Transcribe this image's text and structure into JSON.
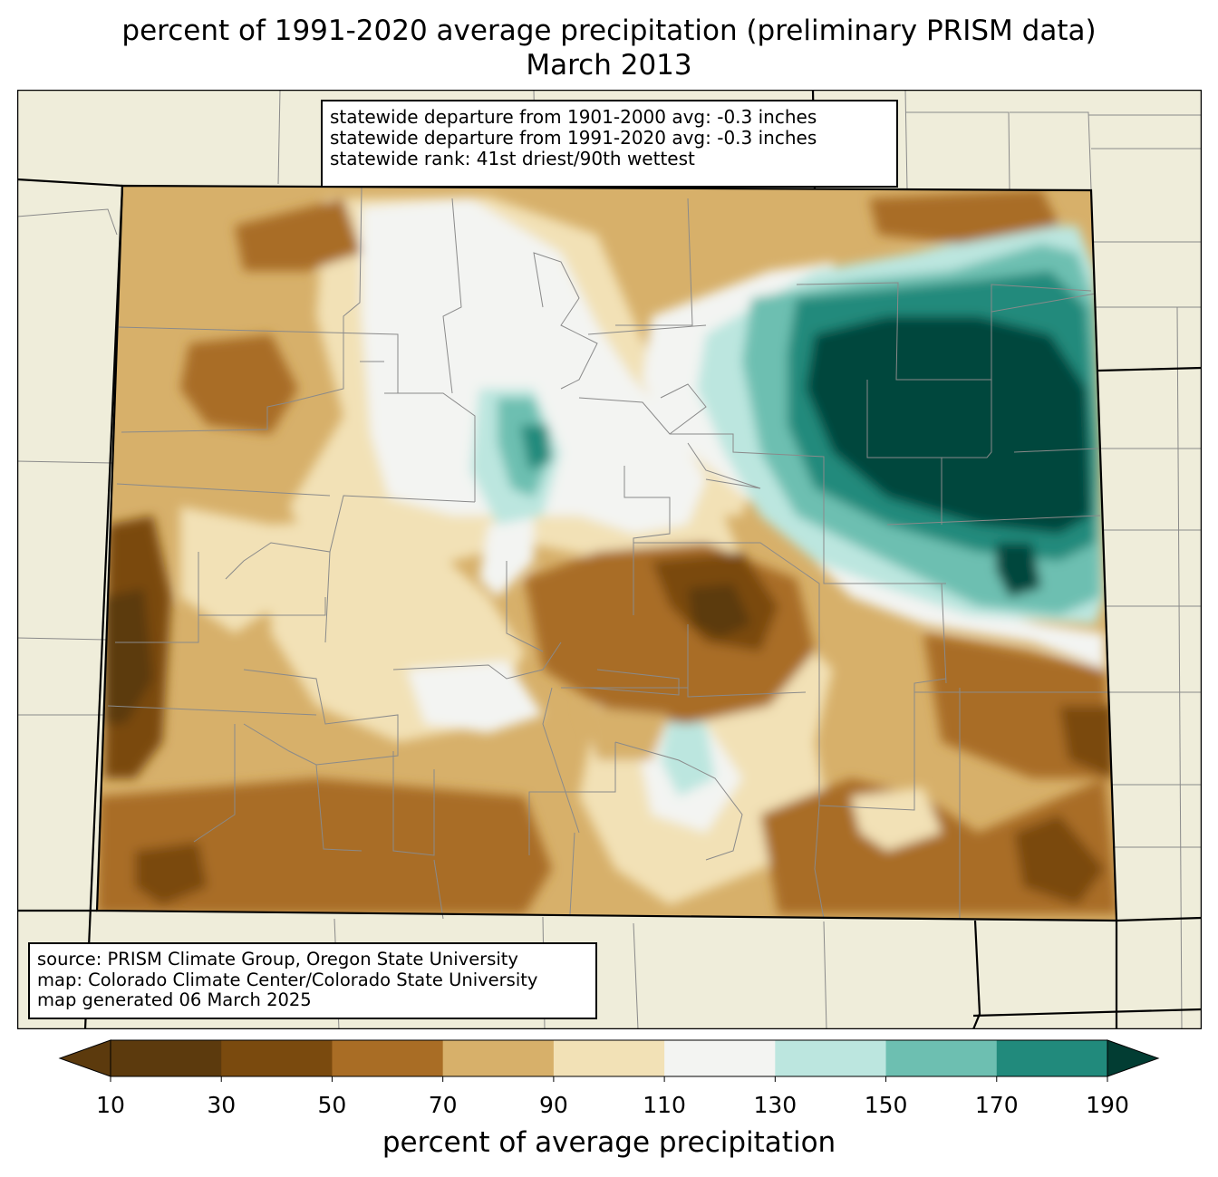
{
  "title": {
    "line1": "percent of 1991-2020 average precipitation (preliminary PRISM data)",
    "line2": "March 2013"
  },
  "stats": {
    "line1": "statewide departure from 1901-2000 avg: -0.3 inches",
    "line2": "statewide departure from 1991-2020 avg: -0.3 inches",
    "line3": "statewide rank: 41st driest/90th wettest"
  },
  "source": {
    "line1": "source: PRISM Climate Group, Oregon State University",
    "line2": "map: Colorado Climate Center/Colorado State University",
    "line3": "map generated 06 March 2025"
  },
  "colorbar": {
    "label": "percent of average precipitation",
    "ticks": [
      "10",
      "30",
      "50",
      "70",
      "90",
      "110",
      "130",
      "150",
      "170",
      "190"
    ],
    "colors": [
      "#5c3a0d",
      "#7a4a0e",
      "#a96d25",
      "#d7b06a",
      "#f2e1b6",
      "#f3f4f2",
      "#bce6df",
      "#6dbfb1",
      "#218a7c",
      "#01473c",
      "#023d33"
    ],
    "extend": "both"
  },
  "map": {
    "land_color": "#efedda",
    "region": "Colorado",
    "wet_region": "northeast plains",
    "dry_region": "southwest and southeast"
  }
}
